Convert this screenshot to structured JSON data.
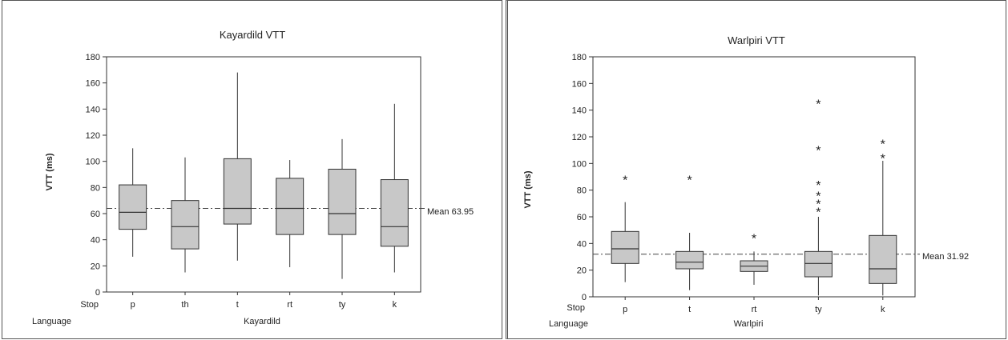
{
  "chart_data": [
    {
      "type": "boxplot",
      "title": "Kayardild VTT",
      "ylabel": "VTT (ms)",
      "ylim": [
        0,
        180
      ],
      "yticks": [
        0,
        20,
        40,
        60,
        80,
        100,
        120,
        140,
        160,
        180
      ],
      "row_labels": [
        "Stop",
        "Language"
      ],
      "group_label": "Kayardild",
      "reference_line": {
        "label": "Mean 63.95",
        "value": 63.95
      },
      "categories": [
        "p",
        "th",
        "t",
        "rt",
        "ty",
        "k"
      ],
      "boxes": [
        {
          "category": "p",
          "min": 27,
          "q1": 48,
          "median": 61,
          "q3": 82,
          "max": 110,
          "outliers": []
        },
        {
          "category": "th",
          "min": 15,
          "q1": 33,
          "median": 50,
          "q3": 70,
          "max": 103,
          "outliers": []
        },
        {
          "category": "t",
          "min": 24,
          "q1": 52,
          "median": 64,
          "q3": 102,
          "max": 168,
          "outliers": []
        },
        {
          "category": "rt",
          "min": 19,
          "q1": 44,
          "median": 64,
          "q3": 87,
          "max": 101,
          "outliers": []
        },
        {
          "category": "ty",
          "min": 10,
          "q1": 44,
          "median": 60,
          "q3": 94,
          "max": 117,
          "outliers": []
        },
        {
          "category": "k",
          "min": 15,
          "q1": 35,
          "median": 50,
          "q3": 86,
          "max": 144,
          "outliers": []
        }
      ]
    },
    {
      "type": "boxplot",
      "title": "Warlpiri VTT",
      "ylabel": "VTT (ms)",
      "ylim": [
        0,
        180
      ],
      "yticks": [
        0,
        20,
        40,
        60,
        80,
        100,
        120,
        140,
        160,
        180
      ],
      "row_labels": [
        "Stop",
        "Language"
      ],
      "group_label": "Warlpiri",
      "reference_line": {
        "label": "Mean 31.92",
        "value": 31.92
      },
      "categories": [
        "p",
        "t",
        "rt",
        "ty",
        "k"
      ],
      "boxes": [
        {
          "category": "p",
          "min": 11,
          "q1": 25,
          "median": 36,
          "q3": 49,
          "max": 71,
          "outliers": [
            88
          ]
        },
        {
          "category": "t",
          "min": 5,
          "q1": 21,
          "median": 26,
          "q3": 34,
          "max": 48,
          "outliers": [
            88
          ]
        },
        {
          "category": "rt",
          "min": 9,
          "q1": 19,
          "median": 23,
          "q3": 27,
          "max": 34,
          "outliers": [
            44
          ]
        },
        {
          "category": "ty",
          "min": 1,
          "q1": 15,
          "median": 25,
          "q3": 34,
          "max": 60,
          "outliers": [
            64,
            70,
            76,
            84,
            110,
            145
          ]
        },
        {
          "category": "k",
          "min": 1,
          "q1": 10,
          "median": 21,
          "q3": 46,
          "max": 102,
          "outliers": [
            104,
            115
          ]
        }
      ]
    }
  ]
}
